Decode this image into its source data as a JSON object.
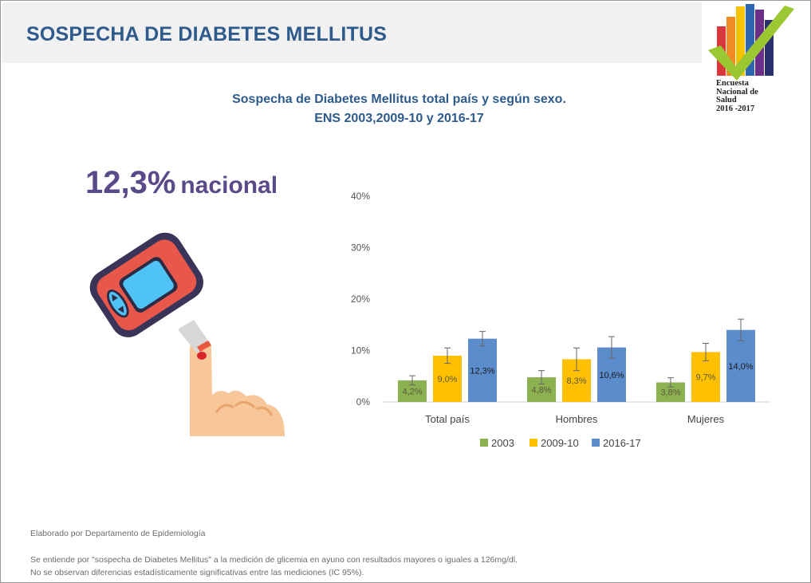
{
  "header": {
    "title": "SOSPECHA DE DIABETES MELLITUS"
  },
  "logo": {
    "line1": "Encuesta",
    "line2": "Nacional de",
    "line3": "Salud",
    "line4": "2016 -2017"
  },
  "subtitle": {
    "line1": "Sospecha de Diabetes Mellitus total país y según sexo.",
    "line2": "ENS 2003,2009-10 y 2016-17"
  },
  "highlight": {
    "value": "12,3%",
    "label": "nacional"
  },
  "chart_data": {
    "type": "bar",
    "title": "",
    "xlabel": "",
    "ylabel": "",
    "categories": [
      "Total país",
      "Hombres",
      "Mujeres"
    ],
    "y_ticks": [
      "0%",
      "10%",
      "20%",
      "30%",
      "40%"
    ],
    "ylim": [
      0,
      40
    ],
    "grid": false,
    "legend_position": "bottom",
    "series": [
      {
        "name": "2003",
        "color": "#8cb151",
        "values": [
          4.2,
          4.8,
          3.8
        ],
        "labels": [
          "4,2%",
          "4,8%",
          "3,8%"
        ],
        "ci": [
          [
            3.3,
            5.1
          ],
          [
            3.5,
            6.1
          ],
          [
            2.9,
            4.7
          ]
        ]
      },
      {
        "name": "2009-10",
        "color": "#ffc000",
        "values": [
          9.0,
          8.3,
          9.7
        ],
        "labels": [
          "9,0%",
          "8,3%",
          "9,7%"
        ],
        "ci": [
          [
            7.5,
            10.5
          ],
          [
            6.1,
            10.5
          ],
          [
            8.0,
            11.4
          ]
        ]
      },
      {
        "name": "2016-17",
        "color": "#5b8ccc",
        "values": [
          12.3,
          10.6,
          14.0
        ],
        "labels": [
          "12,3%",
          "10,6%",
          "14,0%"
        ],
        "ci": [
          [
            10.9,
            13.7
          ],
          [
            8.5,
            12.7
          ],
          [
            11.9,
            16.1
          ]
        ]
      }
    ]
  },
  "footer": {
    "credit": "Elaborado por Departamento de Epidemiología",
    "note1": "Se entiende por \"sospecha de Diabetes Mellitus\" a la medición de glicemia en ayuno con resultados mayores o iguales a 126mg/dl.",
    "note2": "No se observan diferencias estadísticamente significativas entre las mediciones (IC 95%)."
  }
}
